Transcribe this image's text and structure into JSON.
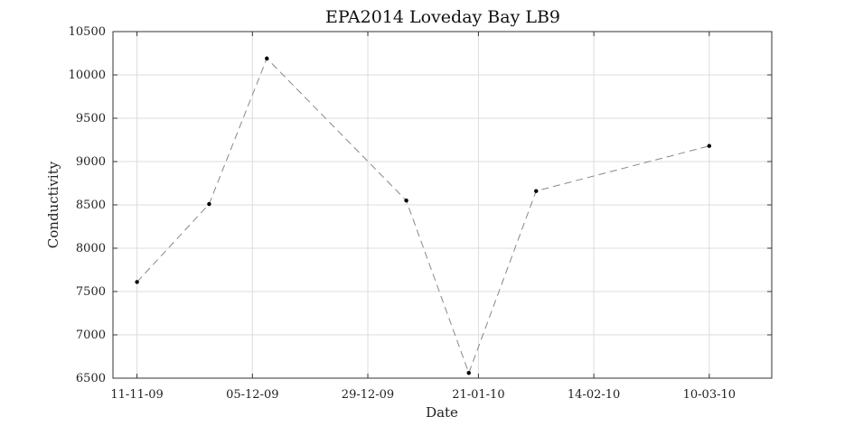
{
  "chart_data": {
    "type": "line",
    "title": "EPA2014 Loveday Bay LB9",
    "xlabel": "Date",
    "ylabel": "Conductivity",
    "x_type": "date",
    "x_tick_labels": [
      "11-11-09",
      "05-12-09",
      "29-12-09",
      "21-01-10",
      "14-02-10",
      "10-03-10"
    ],
    "x_tick_dates": [
      "2009-11-11",
      "2009-12-05",
      "2009-12-29",
      "2010-01-21",
      "2010-02-14",
      "2010-03-10"
    ],
    "xlim": [
      "2009-11-06",
      "2010-03-23"
    ],
    "ylim": [
      6500,
      10500
    ],
    "y_ticks": [
      6500,
      7000,
      7500,
      8000,
      8500,
      9000,
      9500,
      10000,
      10500
    ],
    "grid": true,
    "series": [
      {
        "line_style": "dashed",
        "color": "#888888",
        "marker_color": "#000000",
        "points": [
          {
            "x": "2009-11-11",
            "y": 7610
          },
          {
            "x": "2009-11-26",
            "y": 8510
          },
          {
            "x": "2009-12-08",
            "y": 10190
          },
          {
            "x": "2010-01-06",
            "y": 8550
          },
          {
            "x": "2010-01-19",
            "y": 6560
          },
          {
            "x": "2010-02-02",
            "y": 8660
          },
          {
            "x": "2010-03-10",
            "y": 9180
          }
        ]
      }
    ]
  }
}
